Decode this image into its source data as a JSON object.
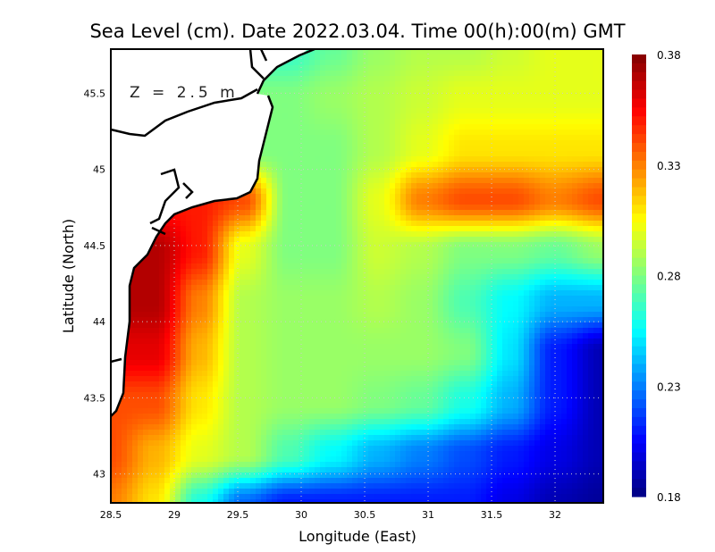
{
  "chart_data": {
    "type": "heatmap",
    "title": "Sea Level (cm). Date 2022.03.04. Time 00(h):00(m) GMT",
    "xlabel": "Longitude (East)",
    "ylabel": "Latitude (North)",
    "annotation": "Z = 2.5 m",
    "xlim": [
      28.5,
      32.38
    ],
    "ylim": [
      42.81,
      45.79
    ],
    "xticks": [
      28.5,
      29,
      29.5,
      30,
      30.5,
      31,
      31.5,
      32
    ],
    "xtick_labels": [
      "28.5",
      "29",
      "29.5",
      "30",
      "30.5",
      "31",
      "31.5",
      "32"
    ],
    "yticks": [
      43,
      43.5,
      44,
      44.5,
      45,
      45.5
    ],
    "ytick_labels": [
      "43",
      "43.5",
      "44",
      "44.5",
      "45",
      "45.5"
    ],
    "grid": true,
    "colorbar": {
      "min": 0.18,
      "max": 0.38,
      "colormap": "jet",
      "ticks": [
        0.38,
        0.33,
        0.28,
        0.23,
        0.18
      ],
      "tick_labels": [
        "0.38",
        "0.33",
        "0.28",
        "0.23",
        "0.18"
      ]
    },
    "grid_lon": [
      28.5,
      28.85,
      29.2,
      29.55,
      29.9,
      30.25,
      30.6,
      30.95,
      31.3,
      31.65,
      32.0,
      32.38
    ],
    "grid_lat": [
      45.8,
      45.47,
      45.13,
      44.8,
      44.47,
      44.13,
      43.8,
      43.47,
      43.13,
      42.8
    ],
    "values": [
      [
        null,
        null,
        null,
        null,
        0.265,
        0.275,
        0.285,
        0.29,
        0.29,
        0.295,
        0.3,
        0.3
      ],
      [
        null,
        null,
        null,
        null,
        0.28,
        0.285,
        0.29,
        0.295,
        0.3,
        0.3,
        0.3,
        0.3
      ],
      [
        null,
        null,
        null,
        null,
        0.28,
        0.28,
        0.29,
        0.3,
        0.31,
        0.31,
        0.31,
        0.31
      ],
      [
        null,
        null,
        0.35,
        0.34,
        0.28,
        0.28,
        0.3,
        0.33,
        0.34,
        0.34,
        0.33,
        0.34
      ],
      [
        null,
        0.37,
        0.35,
        0.3,
        0.28,
        0.28,
        0.295,
        0.29,
        0.28,
        0.28,
        0.275,
        0.285
      ],
      [
        null,
        0.37,
        0.33,
        0.29,
        0.285,
        0.285,
        0.29,
        0.285,
        0.27,
        0.255,
        0.24,
        0.24
      ],
      [
        null,
        0.36,
        0.32,
        0.29,
        0.285,
        0.285,
        0.285,
        0.285,
        0.28,
        0.25,
        0.21,
        0.19
      ],
      [
        null,
        0.34,
        0.31,
        0.29,
        0.285,
        0.285,
        0.28,
        0.275,
        0.26,
        0.24,
        0.21,
        0.19
      ],
      [
        0.34,
        0.32,
        0.3,
        0.29,
        0.27,
        0.255,
        0.24,
        0.23,
        0.22,
        0.21,
        0.2,
        0.19
      ],
      [
        0.33,
        0.31,
        0.26,
        0.225,
        0.21,
        0.21,
        0.21,
        0.21,
        0.21,
        0.2,
        0.19,
        0.185
      ]
    ]
  }
}
